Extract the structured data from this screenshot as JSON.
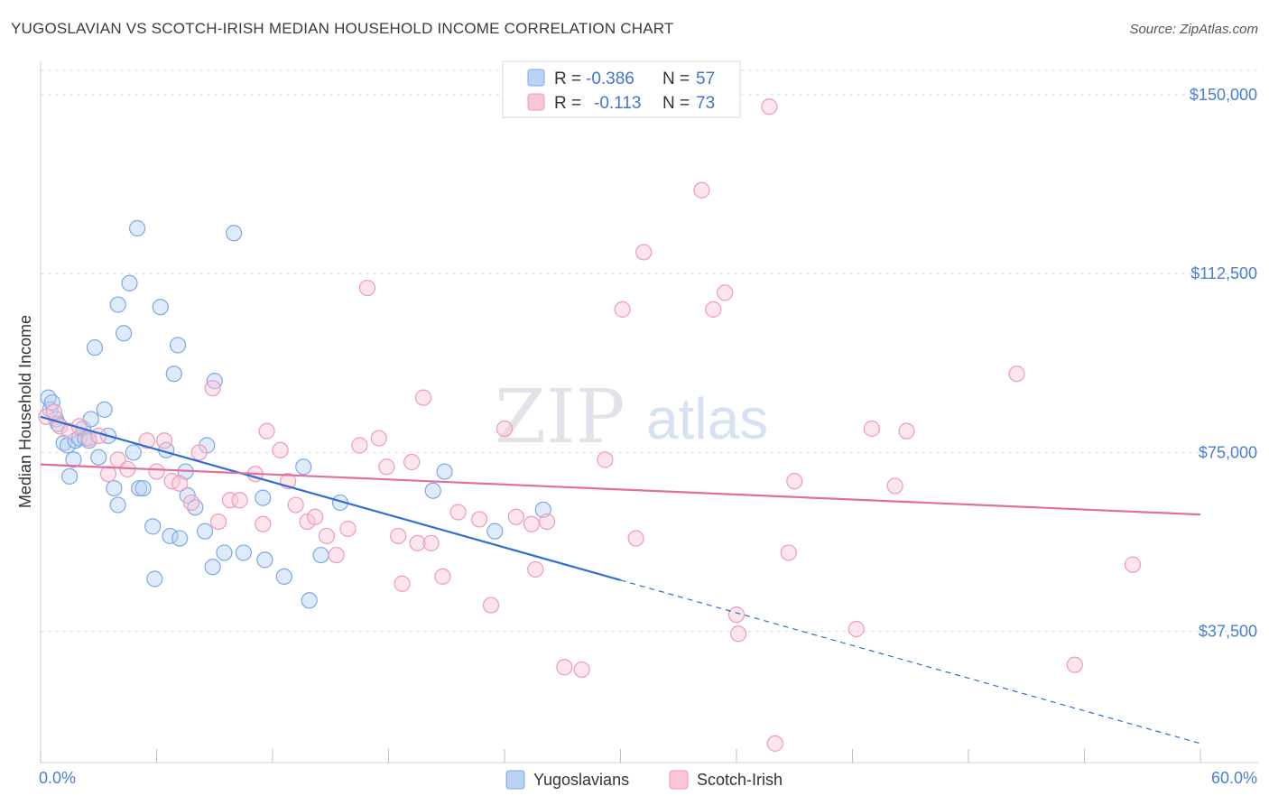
{
  "title": "YUGOSLAVIAN VS SCOTCH-IRISH MEDIAN HOUSEHOLD INCOME CORRELATION CHART",
  "source": "Source: ZipAtlas.com",
  "watermark": {
    "zip": "ZIP",
    "atlas": "atlas"
  },
  "colors": {
    "yugoslavians": "#7aa8e8",
    "scotch_irish": "#f09ab6",
    "blue_line": "#2e6fd1",
    "pink_line": "#e0709a"
  },
  "legend": {
    "rows": [
      {
        "r_label": "R = ",
        "r_value": "-0.386",
        "n_label": "N = ",
        "n_value": "57"
      },
      {
        "r_label": "R = ",
        "r_value": "-0.113",
        "n_label": "N = ",
        "n_value": "73"
      }
    ]
  },
  "chart_data": {
    "type": "scatter",
    "title": "YUGOSLAVIAN VS SCOTCH-IRISH MEDIAN HOUSEHOLD INCOME CORRELATION CHART",
    "xlabel": "",
    "ylabel": "Median Household Income",
    "xlim": [
      0,
      60
    ],
    "ylim": [
      10000,
      157000
    ],
    "x_tick_labels": [
      "0.0%",
      "60.0%"
    ],
    "y_ticks": [
      37500,
      75000,
      112500,
      150000
    ],
    "y_tick_labels": [
      "$37,500",
      "$75,000",
      "$112,500",
      "$150,000"
    ],
    "series": [
      {
        "name": "Yugoslavians",
        "points": [
          [
            0.4,
            86500
          ],
          [
            0.5,
            84000
          ],
          [
            0.6,
            85500
          ],
          [
            0.8,
            82000
          ],
          [
            0.9,
            81000
          ],
          [
            1.2,
            77000
          ],
          [
            1.4,
            76500
          ],
          [
            1.5,
            70000
          ],
          [
            1.7,
            73500
          ],
          [
            1.8,
            77500
          ],
          [
            2.0,
            78000
          ],
          [
            2.2,
            80000
          ],
          [
            2.3,
            78000
          ],
          [
            2.5,
            77500
          ],
          [
            2.8,
            97000
          ],
          [
            3.0,
            74000
          ],
          [
            3.3,
            84000
          ],
          [
            3.5,
            78500
          ],
          [
            3.8,
            67500
          ],
          [
            4.0,
            64000
          ],
          [
            4.0,
            106000
          ],
          [
            4.3,
            100000
          ],
          [
            4.6,
            110500
          ],
          [
            4.8,
            75000
          ],
          [
            5.0,
            122000
          ],
          [
            5.1,
            67500
          ],
          [
            5.3,
            67500
          ],
          [
            5.8,
            59500
          ],
          [
            5.9,
            48500
          ],
          [
            6.2,
            105500
          ],
          [
            6.5,
            75500
          ],
          [
            6.7,
            57500
          ],
          [
            6.9,
            91500
          ],
          [
            7.1,
            97500
          ],
          [
            7.2,
            57000
          ],
          [
            7.5,
            71000
          ],
          [
            7.6,
            66000
          ],
          [
            8.0,
            63500
          ],
          [
            8.5,
            58500
          ],
          [
            8.6,
            76500
          ],
          [
            8.9,
            51000
          ],
          [
            9.0,
            90000
          ],
          [
            9.5,
            54000
          ],
          [
            10.0,
            121000
          ],
          [
            10.5,
            54000
          ],
          [
            11.5,
            65500
          ],
          [
            11.6,
            52500
          ],
          [
            12.6,
            49000
          ],
          [
            13.6,
            72000
          ],
          [
            13.9,
            44000
          ],
          [
            14.5,
            53500
          ],
          [
            15.5,
            64500
          ],
          [
            20.3,
            67000
          ],
          [
            20.9,
            71000
          ],
          [
            23.5,
            58500
          ],
          [
            26.0,
            63000
          ],
          [
            2.6,
            82000
          ]
        ]
      },
      {
        "name": "Scotch-Irish",
        "points": [
          [
            0.3,
            82500
          ],
          [
            0.7,
            83500
          ],
          [
            1.0,
            80500
          ],
          [
            1.5,
            79500
          ],
          [
            2.5,
            78000
          ],
          [
            3.0,
            78500
          ],
          [
            3.5,
            70500
          ],
          [
            4.0,
            73500
          ],
          [
            4.5,
            71500
          ],
          [
            5.5,
            77500
          ],
          [
            6.0,
            71000
          ],
          [
            6.4,
            77500
          ],
          [
            6.8,
            69000
          ],
          [
            7.2,
            68500
          ],
          [
            7.8,
            64500
          ],
          [
            8.2,
            75000
          ],
          [
            8.9,
            88500
          ],
          [
            9.2,
            60500
          ],
          [
            9.8,
            65000
          ],
          [
            10.3,
            65000
          ],
          [
            11.1,
            70500
          ],
          [
            11.5,
            60000
          ],
          [
            11.7,
            79500
          ],
          [
            12.4,
            75500
          ],
          [
            12.8,
            69000
          ],
          [
            13.2,
            64000
          ],
          [
            13.8,
            60500
          ],
          [
            14.2,
            61500
          ],
          [
            14.8,
            57500
          ],
          [
            15.3,
            53500
          ],
          [
            15.9,
            59000
          ],
          [
            16.5,
            76500
          ],
          [
            16.9,
            109500
          ],
          [
            17.5,
            78000
          ],
          [
            17.9,
            72000
          ],
          [
            18.5,
            57500
          ],
          [
            18.7,
            47500
          ],
          [
            19.2,
            73000
          ],
          [
            19.5,
            56000
          ],
          [
            19.8,
            86500
          ],
          [
            20.2,
            56000
          ],
          [
            20.8,
            49000
          ],
          [
            21.6,
            62500
          ],
          [
            22.7,
            61000
          ],
          [
            23.3,
            43000
          ],
          [
            24.0,
            80000
          ],
          [
            24.6,
            61500
          ],
          [
            25.4,
            60000
          ],
          [
            25.6,
            50500
          ],
          [
            26.2,
            60500
          ],
          [
            27.1,
            30000
          ],
          [
            28.0,
            29500
          ],
          [
            29.2,
            73500
          ],
          [
            30.1,
            105000
          ],
          [
            30.8,
            57000
          ],
          [
            31.2,
            117000
          ],
          [
            34.2,
            130000
          ],
          [
            34.8,
            105000
          ],
          [
            35.4,
            108500
          ],
          [
            36.0,
            41000
          ],
          [
            36.1,
            37000
          ],
          [
            37.7,
            147500
          ],
          [
            38.0,
            14000
          ],
          [
            38.7,
            54000
          ],
          [
            39.0,
            69000
          ],
          [
            42.2,
            38000
          ],
          [
            43.0,
            80000
          ],
          [
            44.2,
            68000
          ],
          [
            44.8,
            79500
          ],
          [
            50.5,
            91500
          ],
          [
            53.5,
            30500
          ],
          [
            56.5,
            51500
          ],
          [
            2.0,
            80500
          ]
        ]
      }
    ],
    "trend_lines": [
      {
        "series": "Yugoslavians",
        "x_solid": [
          0,
          30
        ],
        "x_dashed": [
          30,
          60
        ],
        "y_at_0": 82500,
        "y_at_60": 14000
      },
      {
        "series": "Scotch-Irish",
        "x_solid": [
          0,
          60
        ],
        "y_at_0": 72500,
        "y_at_60": 62000
      }
    ]
  }
}
